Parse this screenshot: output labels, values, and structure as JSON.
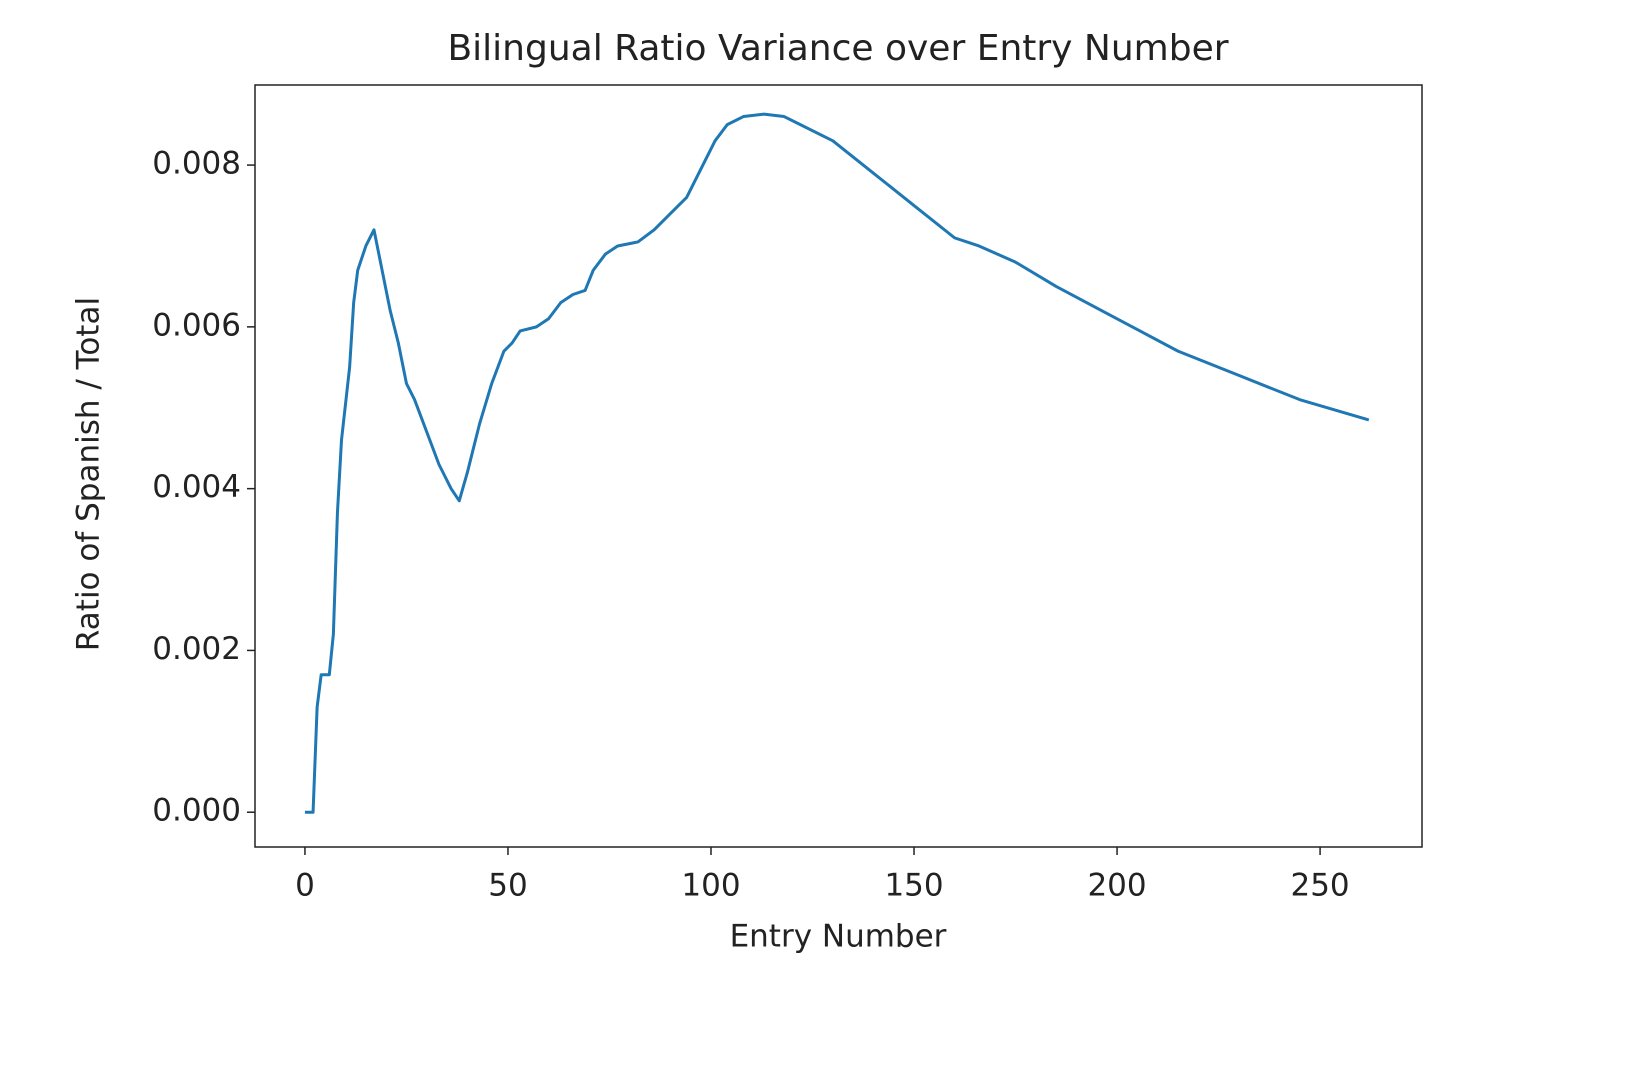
{
  "chart_data": {
    "type": "line",
    "title": "Bilingual Ratio Variance over Entry Number",
    "x_label": "Entry Number",
    "y_label": "Ratio of Spanish / Total",
    "x": [
      0,
      2,
      3,
      4,
      6,
      7,
      8,
      9,
      11,
      12,
      13,
      15,
      17,
      19,
      21,
      23,
      25,
      27,
      30,
      33,
      36,
      38,
      40,
      41,
      43,
      46,
      49,
      51,
      53,
      57,
      60,
      63,
      66,
      69,
      71,
      74,
      77,
      82,
      86,
      90,
      94,
      98,
      101,
      104,
      108,
      113,
      118,
      122,
      130,
      140,
      150,
      160,
      166,
      175,
      185,
      200,
      215,
      230,
      245,
      262
    ],
    "series": [
      {
        "name": "ratio",
        "color": "#1f77b4",
        "values": [
          0.0,
          0.0,
          0.0013,
          0.0017,
          0.0017,
          0.0022,
          0.0037,
          0.0046,
          0.0055,
          0.0063,
          0.0067,
          0.007,
          0.0072,
          0.0067,
          0.0062,
          0.0058,
          0.0053,
          0.0051,
          0.0047,
          0.0043,
          0.004,
          0.00385,
          0.0042,
          0.0044,
          0.0048,
          0.0053,
          0.0057,
          0.0058,
          0.00595,
          0.006,
          0.0061,
          0.0063,
          0.0064,
          0.00645,
          0.0067,
          0.0069,
          0.007,
          0.00705,
          0.0072,
          0.0074,
          0.0076,
          0.008,
          0.0083,
          0.0085,
          0.0086,
          0.00863,
          0.0086,
          0.0085,
          0.0083,
          0.0079,
          0.0075,
          0.0071,
          0.007,
          0.0068,
          0.0065,
          0.0061,
          0.0057,
          0.0054,
          0.0051,
          0.00485
        ]
      }
    ],
    "xlim": [
      -12.3,
      275.1
    ],
    "xticks": [
      0,
      50,
      100,
      150,
      200,
      250
    ],
    "ylim": [
      -0.00043,
      0.00899
    ],
    "yticks": [
      {
        "value": 0,
        "label": "0.000"
      },
      0.002,
      0.004,
      0.006,
      0.008
    ],
    "grid": false
  }
}
